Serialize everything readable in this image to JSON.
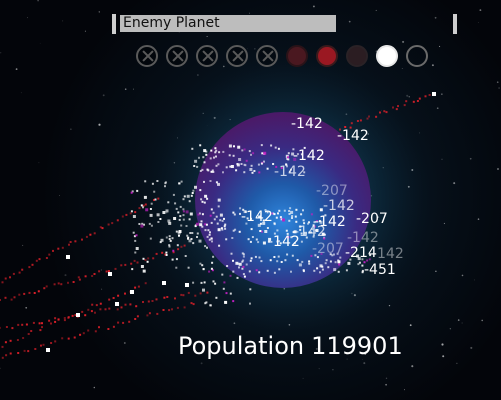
{
  "hud": {
    "planet_name": "Enemy Planet",
    "slots": [
      {
        "state": "crossed",
        "icon": "x-circle-icon"
      },
      {
        "state": "crossed",
        "icon": "x-circle-icon"
      },
      {
        "state": "crossed",
        "icon": "x-circle-icon"
      },
      {
        "state": "crossed",
        "icon": "x-circle-icon"
      },
      {
        "state": "crossed",
        "icon": "x-circle-icon"
      },
      {
        "state": "dark-red",
        "icon": "filled-circle-icon"
      },
      {
        "state": "red",
        "icon": "filled-circle-icon"
      },
      {
        "state": "dark",
        "icon": "filled-circle-icon"
      },
      {
        "state": "white",
        "icon": "filled-circle-icon"
      },
      {
        "state": "empty",
        "icon": "empty-circle-icon"
      }
    ]
  },
  "population": {
    "label": "Population",
    "value": "119901"
  },
  "damage_numbers": [
    "-142",
    "-142",
    "-142",
    "-142",
    "-207",
    "-142",
    "-142",
    "-207",
    "-142",
    "-142",
    "-142",
    "-207",
    "-214",
    "-142",
    "-451",
    "-142"
  ],
  "colors": {
    "planet_core": "#2f7fd6",
    "planet_rim": "#4a1f6e",
    "planet_glow": "#1a6e9e",
    "enemy_particles": "#e0202a",
    "player_particles": "#ffffff"
  }
}
